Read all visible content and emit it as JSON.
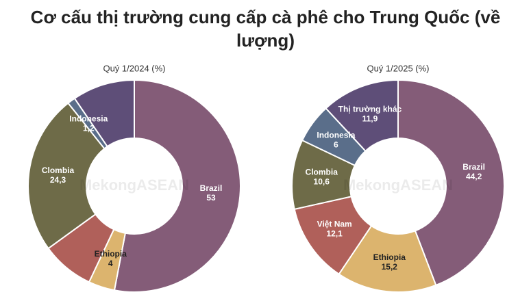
{
  "title": "Cơ cấu thị trường cung cấp cà phê cho Trung Quốc (về lượng)",
  "watermark": "MekongASEAN",
  "chart_data": [
    {
      "type": "pie",
      "title": "Quý 1/2024 (%)",
      "categories": [
        "Brazil",
        "Ethiopia",
        null,
        "Clombia",
        "Indonesia",
        null
      ],
      "values": [
        53,
        4,
        8,
        24.3,
        1.2,
        9.5
      ],
      "value_labels": [
        "53",
        "4",
        null,
        "24,3",
        "1,2",
        null
      ],
      "colors": [
        "#845c78",
        "#dcb46e",
        "#b0605a",
        "#6e6b48",
        "#5a6e8a",
        "#5e4e78"
      ]
    },
    {
      "type": "pie",
      "title": "Quý 1/2025 (%)",
      "categories": [
        "Brazil",
        "Ethiopia",
        "Việt Nam",
        "Clombia",
        "Indonesia",
        "Thị trường khác"
      ],
      "values": [
        44.2,
        15.2,
        12.1,
        10.6,
        6,
        11.9
      ],
      "value_labels": [
        "44,2",
        "15,2",
        "12,1",
        "10,6",
        "6",
        "11,9"
      ],
      "colors": [
        "#845c78",
        "#dcb46e",
        "#b0605a",
        "#6e6b48",
        "#5a6e8a",
        "#5e4e78"
      ]
    }
  ]
}
